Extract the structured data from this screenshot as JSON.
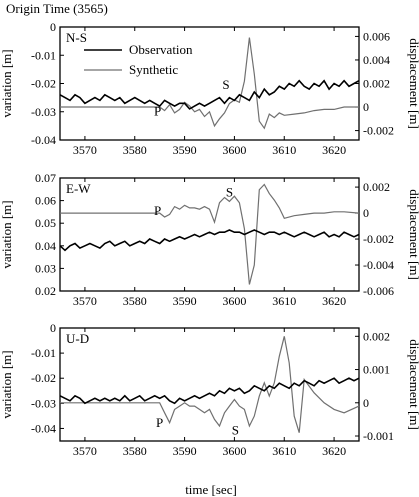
{
  "chart_data": {
    "type": "line",
    "title": "Origin Time (3565)",
    "xlabel": "time [sec]",
    "xlim": [
      3565,
      3625
    ],
    "xticks": [
      3570,
      3580,
      3590,
      3600,
      3610,
      3620
    ],
    "left_ylabel": "variation [m]",
    "right_ylabel": "displacement [m]",
    "legend": {
      "placement": "top-left",
      "entries": [
        {
          "name": "Observation",
          "color": "#000000"
        },
        {
          "name": "Synthetic",
          "color": "#707070"
        }
      ]
    },
    "panels": [
      {
        "label": "N-S",
        "left_ylim": [
          -0.04,
          0.0
        ],
        "left_ticks": [
          -0.04,
          -0.03,
          -0.02,
          -0.01,
          0.0
        ],
        "left_tick_labels": [
          "-0.04",
          "-0.03",
          "-0.02",
          "-0.01",
          "0"
        ],
        "right_ylim": [
          -0.0028,
          0.0068
        ],
        "right_ticks": [
          -0.002,
          0.0,
          0.002,
          0.004,
          0.006
        ],
        "right_tick_labels": [
          "-0.002",
          "0",
          "0.002",
          "0.004",
          "0.006"
        ],
        "phase_labels": [
          {
            "text": "P",
            "x": 3584.6,
            "y": -0.0313
          },
          {
            "text": "S",
            "x": 3598.3,
            "y": -0.0219
          }
        ],
        "observation": {
          "x": [
            3565,
            3566,
            3567,
            3568,
            3569,
            3570,
            3571,
            3572,
            3573,
            3574,
            3575,
            3576,
            3577,
            3578,
            3579,
            3580,
            3581,
            3582,
            3583,
            3584,
            3585,
            3586,
            3587,
            3588,
            3589,
            3590,
            3591,
            3592,
            3593,
            3594,
            3595,
            3596,
            3597,
            3598,
            3599,
            3600,
            3601,
            3602,
            3603,
            3604,
            3605,
            3606,
            3607,
            3608,
            3609,
            3610,
            3611,
            3612,
            3613,
            3614,
            3615,
            3616,
            3617,
            3618,
            3619,
            3620,
            3621,
            3622,
            3623,
            3624,
            3625
          ],
          "y": [
            -0.024,
            -0.025,
            -0.026,
            -0.024,
            -0.025,
            -0.027,
            -0.026,
            -0.025,
            -0.026,
            -0.024,
            -0.025,
            -0.026,
            -0.025,
            -0.027,
            -0.026,
            -0.025,
            -0.026,
            -0.027,
            -0.026,
            -0.027,
            -0.028,
            -0.026,
            -0.027,
            -0.028,
            -0.027,
            -0.027,
            -0.029,
            -0.028,
            -0.027,
            -0.028,
            -0.027,
            -0.026,
            -0.025,
            -0.027,
            -0.025,
            -0.026,
            -0.024,
            -0.025,
            -0.026,
            -0.023,
            -0.025,
            -0.022,
            -0.024,
            -0.023,
            -0.021,
            -0.022,
            -0.02,
            -0.021,
            -0.019,
            -0.021,
            -0.022,
            -0.02,
            -0.021,
            -0.019,
            -0.022,
            -0.02,
            -0.021,
            -0.019,
            -0.021,
            -0.02,
            -0.019
          ]
        },
        "synthetic": {
          "x": [
            3565,
            3585,
            3586,
            3587,
            3588,
            3589,
            3590,
            3591,
            3592,
            3593,
            3594,
            3595,
            3596,
            3597,
            3598,
            3599,
            3600,
            3601,
            3602,
            3603,
            3604,
            3605,
            3606,
            3607,
            3608,
            3609,
            3610,
            3612,
            3614,
            3616,
            3618,
            3620,
            3622,
            3625
          ],
          "y": [
            0.0,
            0.0,
            -0.0003,
            0.0002,
            -0.0005,
            -0.0002,
            0.0004,
            0.0001,
            -0.0004,
            -0.0002,
            -0.0008,
            -0.0004,
            -0.0016,
            -0.001,
            -0.0005,
            0.0003,
            0.0006,
            0.0004,
            0.0022,
            0.0059,
            0.0028,
            -0.0012,
            -0.0018,
            -0.0006,
            -0.0009,
            -0.0005,
            -0.0007,
            -0.0006,
            -0.0005,
            -0.0003,
            -0.0002,
            -0.0002,
            0.0,
            0.0
          ]
        }
      },
      {
        "label": "E-W",
        "left_ylim": [
          0.02,
          0.07
        ],
        "left_ticks": [
          0.02,
          0.03,
          0.04,
          0.05,
          0.06,
          0.07
        ],
        "left_tick_labels": [
          "0.02",
          "0.03",
          "0.04",
          "0.05",
          "0.06",
          "0.07"
        ],
        "right_ylim": [
          -0.006,
          0.0027
        ],
        "right_ticks": [
          -0.006,
          -0.004,
          -0.002,
          0.0,
          0.002
        ],
        "right_tick_labels": [
          "-0.006",
          "-0.004",
          "-0.002",
          "0",
          "0.002"
        ],
        "phase_labels": [
          {
            "text": "P",
            "x": 3584.6,
            "y": 0.0536
          },
          {
            "text": "S",
            "x": 3599.0,
            "y": 0.0618
          }
        ],
        "observation": {
          "x": [
            3565,
            3566,
            3567,
            3568,
            3569,
            3570,
            3571,
            3572,
            3573,
            3574,
            3575,
            3576,
            3577,
            3578,
            3579,
            3580,
            3581,
            3582,
            3583,
            3584,
            3585,
            3586,
            3587,
            3588,
            3589,
            3590,
            3591,
            3592,
            3593,
            3594,
            3595,
            3596,
            3597,
            3598,
            3599,
            3600,
            3601,
            3602,
            3603,
            3604,
            3605,
            3606,
            3607,
            3608,
            3609,
            3610,
            3611,
            3612,
            3613,
            3614,
            3615,
            3616,
            3617,
            3618,
            3619,
            3620,
            3621,
            3622,
            3623,
            3624,
            3625
          ],
          "y": [
            0.04,
            0.038,
            0.04,
            0.041,
            0.039,
            0.04,
            0.041,
            0.04,
            0.039,
            0.041,
            0.042,
            0.04,
            0.041,
            0.042,
            0.04,
            0.041,
            0.042,
            0.041,
            0.043,
            0.042,
            0.041,
            0.043,
            0.042,
            0.043,
            0.044,
            0.043,
            0.044,
            0.045,
            0.044,
            0.045,
            0.046,
            0.045,
            0.046,
            0.046,
            0.047,
            0.046,
            0.046,
            0.045,
            0.046,
            0.047,
            0.046,
            0.045,
            0.046,
            0.046,
            0.045,
            0.046,
            0.045,
            0.044,
            0.045,
            0.046,
            0.045,
            0.044,
            0.045,
            0.046,
            0.044,
            0.045,
            0.044,
            0.046,
            0.045,
            0.044,
            0.045
          ]
        },
        "synthetic": {
          "x": [
            3565,
            3585,
            3586,
            3587,
            3588,
            3589,
            3590,
            3591,
            3592,
            3593,
            3594,
            3595,
            3596,
            3597,
            3598,
            3599,
            3600,
            3601,
            3602,
            3603,
            3604,
            3605,
            3606,
            3607,
            3608,
            3609,
            3610,
            3612,
            3614,
            3616,
            3618,
            3620,
            3622,
            3625
          ],
          "y": [
            0.0,
            0.0,
            -0.0003,
            -0.0001,
            0.0005,
            0.0003,
            0.0006,
            0.0004,
            0.0004,
            0.0003,
            0.0005,
            0.0003,
            -0.0007,
            0.0008,
            0.0012,
            0.0009,
            0.0013,
            0.0008,
            -0.0012,
            -0.0055,
            -0.004,
            0.0018,
            0.0022,
            0.0015,
            0.001,
            0.0004,
            -0.0004,
            -0.0002,
            -0.0001,
            0.0,
            0.0,
            0.0001,
            0.0001,
            0.0
          ]
        }
      },
      {
        "label": "U-D",
        "left_ylim": [
          -0.045,
          0.0
        ],
        "left_ticks": [
          -0.04,
          -0.03,
          -0.02,
          -0.01,
          0.0
        ],
        "left_tick_labels": [
          "-0.04",
          "-0.03",
          "-0.02",
          "-0.01",
          "0"
        ],
        "right_ylim": [
          -0.00115,
          0.00225
        ],
        "right_ticks": [
          -0.001,
          0.0,
          0.001,
          0.002
        ],
        "right_tick_labels": [
          "-0.001",
          "0",
          "0.001",
          "0.002"
        ],
        "phase_labels": [
          {
            "text": "P",
            "x": 3585.0,
            "y": -0.0395
          },
          {
            "text": "S",
            "x": 3600.2,
            "y": -0.0425
          }
        ],
        "observation": {
          "x": [
            3565,
            3566,
            3567,
            3568,
            3569,
            3570,
            3571,
            3572,
            3573,
            3574,
            3575,
            3576,
            3577,
            3578,
            3579,
            3580,
            3581,
            3582,
            3583,
            3584,
            3585,
            3586,
            3587,
            3588,
            3589,
            3590,
            3591,
            3592,
            3593,
            3594,
            3595,
            3596,
            3597,
            3598,
            3599,
            3600,
            3601,
            3602,
            3603,
            3604,
            3605,
            3606,
            3607,
            3608,
            3609,
            3610,
            3611,
            3612,
            3613,
            3614,
            3615,
            3616,
            3617,
            3618,
            3619,
            3620,
            3621,
            3622,
            3623,
            3624,
            3625
          ],
          "y": [
            -0.027,
            -0.028,
            -0.029,
            -0.027,
            -0.028,
            -0.03,
            -0.029,
            -0.028,
            -0.029,
            -0.028,
            -0.029,
            -0.028,
            -0.029,
            -0.027,
            -0.029,
            -0.028,
            -0.027,
            -0.029,
            -0.028,
            -0.027,
            -0.028,
            -0.027,
            -0.029,
            -0.03,
            -0.028,
            -0.029,
            -0.028,
            -0.027,
            -0.028,
            -0.027,
            -0.026,
            -0.027,
            -0.025,
            -0.026,
            -0.024,
            -0.025,
            -0.024,
            -0.026,
            -0.025,
            -0.023,
            -0.024,
            -0.025,
            -0.023,
            -0.024,
            -0.022,
            -0.023,
            -0.024,
            -0.022,
            -0.023,
            -0.021,
            -0.022,
            -0.023,
            -0.021,
            -0.022,
            -0.021,
            -0.02,
            -0.022,
            -0.021,
            -0.02,
            -0.021,
            -0.02
          ]
        },
        "synthetic": {
          "x": [
            3565,
            3585,
            3586,
            3587,
            3588,
            3589,
            3590,
            3591,
            3592,
            3593,
            3594,
            3595,
            3596,
            3597,
            3598,
            3599,
            3600,
            3601,
            3602,
            3603,
            3604,
            3605,
            3606,
            3607,
            3608,
            3609,
            3610,
            3611,
            3612,
            3613,
            3614,
            3616,
            3618,
            3620,
            3622,
            3625
          ],
          "y": [
            0.0,
            0.0,
            -0.0003,
            -0.0006,
            -0.0002,
            -0.0001,
            0.0,
            -0.0001,
            -0.0001,
            -0.0002,
            -0.0003,
            -0.0002,
            -0.0005,
            -0.0007,
            -0.0003,
            -0.0001,
            0.0001,
            -0.0001,
            -0.0002,
            -0.0007,
            -0.0004,
            0.0002,
            0.0006,
            0.0002,
            0.0006,
            0.0014,
            0.002,
            0.0012,
            -0.0004,
            -0.0009,
            0.0007,
            0.0003,
            0.0,
            -0.0002,
            -0.0003,
            -0.0001
          ]
        }
      }
    ]
  }
}
